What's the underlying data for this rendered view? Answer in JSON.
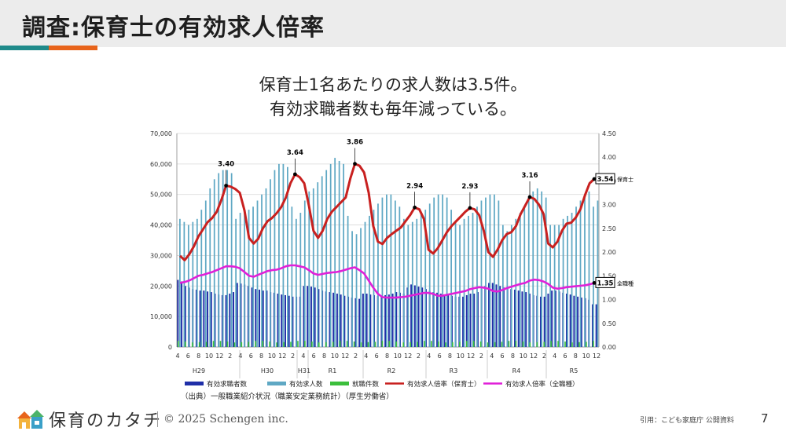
{
  "slide": {
    "title": "調査:保育士の有効求人倍率",
    "subtitle_line1": "保育士1名あたりの求人数は3.5件。",
    "subtitle_line2": "有効求職者数も毎年減っている。",
    "source": "（出典）一般職業紹介状況（職業安定業務統計）（厚生労働省）",
    "brand": "保育のカタチ",
    "copyright": "© 2025 Schengen inc.",
    "citation": "引用：こども家庭庁 公開資料",
    "page": "7",
    "colors": {
      "teal": "#1f8a8a",
      "orange": "#e8641b",
      "header_bg": "#ececec"
    }
  },
  "chart_data": {
    "type": "bar",
    "x_month_labels": [
      "4",
      "6",
      "8",
      "10",
      "12",
      "2",
      "4",
      "6",
      "8",
      "10",
      "12",
      "2",
      "4",
      "6",
      "8",
      "10",
      "12",
      "2",
      "4",
      "6",
      "8",
      "10",
      "12",
      "2",
      "4",
      "6",
      "8",
      "10",
      "12",
      "2",
      "4",
      "6",
      "8",
      "10",
      "12",
      "2",
      "4",
      "6",
      "8",
      "10",
      "12"
    ],
    "x_year_labels": [
      "H29",
      "H30",
      "H31",
      "R1",
      "R2",
      "R3",
      "R4",
      "R5"
    ],
    "ylim_left": [
      0,
      70000
    ],
    "left_ticks": [
      "0",
      "10,000",
      "20,000",
      "30,000",
      "40,000",
      "50,000",
      "60,000",
      "70,000"
    ],
    "ylim_right": [
      0,
      4.5
    ],
    "right_ticks": [
      "0.00",
      "0.50",
      "1.00",
      "1.50",
      "2.00",
      "2.50",
      "3.00",
      "3.50",
      "4.00",
      "4.50"
    ],
    "series": [
      {
        "name": "有効求職者数",
        "type": "bar",
        "color": "#1f2fa8",
        "values": [
          22000,
          21500,
          20000,
          19500,
          19000,
          18800,
          18500,
          18500,
          18200,
          18000,
          17500,
          17200,
          17000,
          17000,
          17500,
          18000,
          21000,
          20800,
          20500,
          20000,
          19500,
          19000,
          18800,
          18500,
          18500,
          18000,
          17800,
          17500,
          17200,
          17000,
          16800,
          16500,
          16500,
          16500,
          20000,
          20000,
          19800,
          19500,
          19000,
          18500,
          18200,
          18000,
          17800,
          17500,
          17200,
          16800,
          16500,
          16200,
          16000,
          15800,
          17500,
          17500,
          17200,
          17000,
          16800,
          16800,
          17000,
          17200,
          17500,
          18000,
          17800,
          17500,
          19500,
          20500,
          20200,
          19800,
          19500,
          19000,
          18500,
          18000,
          17800,
          17500,
          17200,
          17000,
          16800,
          16500,
          16500,
          16500,
          17000,
          17500,
          17500,
          18000,
          19000,
          20000,
          21000,
          21000,
          20500,
          20000,
          19500,
          19200,
          19000,
          18800,
          18500,
          18200,
          18000,
          17500,
          17000,
          16800,
          16500,
          16500,
          17500,
          18500,
          18500,
          18200,
          17800,
          17500,
          17200,
          16800,
          16500,
          16200,
          16000,
          15500,
          14000,
          14000
        ]
      },
      {
        "name": "有効求人数",
        "type": "bar",
        "color": "#5fa8c4",
        "values": [
          42000,
          41000,
          40000,
          41000,
          42000,
          45000,
          48000,
          52000,
          55000,
          57000,
          58000,
          58000,
          57000,
          42000,
          44000,
          45000,
          45000,
          46000,
          48000,
          50000,
          52000,
          55000,
          58000,
          60000,
          60000,
          59000,
          46000,
          42000,
          44000,
          48000,
          51000,
          52000,
          54000,
          56000,
          58000,
          60000,
          62000,
          61000,
          60000,
          43000,
          38000,
          37000,
          39000,
          41000,
          43000,
          45000,
          47000,
          49000,
          50000,
          50000,
          48000,
          46000,
          42000,
          40000,
          41000,
          42000,
          44000,
          45000,
          47000,
          49000,
          50000,
          50000,
          49000,
          45000,
          41000,
          40000,
          42000,
          43000,
          44000,
          46000,
          48000,
          49000,
          50000,
          50000,
          48000,
          40000,
          38000,
          40000,
          42000,
          44000,
          46000,
          49000,
          51000,
          52000,
          51000,
          49000,
          40000,
          40000,
          40000,
          42000,
          43000,
          44000,
          46000,
          48000,
          50000,
          51000,
          46000,
          48000
        ]
      },
      {
        "name": "就職件数",
        "type": "bar",
        "color": "#3cbf3c",
        "values": [
          2000,
          1800,
          1500,
          1600,
          1700,
          2000
        ]
      },
      {
        "name": "有効求人倍率（保育士）",
        "type": "line",
        "axis": "right",
        "color": "#c8201f",
        "values": [
          1.92,
          1.83,
          1.95,
          2.12,
          2.33,
          2.48,
          2.63,
          2.72,
          2.85,
          3.1,
          3.4,
          3.38,
          3.33,
          3.25,
          2.88,
          2.3,
          2.18,
          2.28,
          2.5,
          2.65,
          2.72,
          2.82,
          2.95,
          3.15,
          3.45,
          3.64,
          3.58,
          3.45,
          2.98,
          2.45,
          2.3,
          2.45,
          2.7,
          2.85,
          2.95,
          3.05,
          3.15,
          3.55,
          3.86,
          3.82,
          3.68,
          3.25,
          2.55,
          2.22,
          2.17,
          2.3,
          2.38,
          2.45,
          2.52,
          2.65,
          2.78,
          2.94,
          2.9,
          2.7,
          2.05,
          1.97,
          2.08,
          2.25,
          2.42,
          2.55,
          2.65,
          2.75,
          2.85,
          2.93,
          2.9,
          2.78,
          2.45,
          2.0,
          1.9,
          2.05,
          2.25,
          2.38,
          2.42,
          2.55,
          2.8,
          2.98,
          3.16,
          3.12,
          3.0,
          2.8,
          2.18,
          2.1,
          2.22,
          2.45,
          2.6,
          2.62,
          2.73,
          2.9,
          3.2,
          3.45,
          3.54
        ]
      },
      {
        "name": "有効求人倍率（全職種）",
        "type": "line",
        "axis": "right",
        "color": "#e020d8",
        "values": [
          1.35,
          1.37,
          1.4,
          1.45,
          1.5,
          1.52,
          1.55,
          1.58,
          1.62,
          1.66,
          1.7,
          1.7,
          1.69,
          1.66,
          1.58,
          1.5,
          1.48,
          1.52,
          1.56,
          1.6,
          1.62,
          1.63,
          1.66,
          1.7,
          1.72,
          1.72,
          1.7,
          1.68,
          1.62,
          1.55,
          1.52,
          1.54,
          1.56,
          1.57,
          1.58,
          1.6,
          1.63,
          1.66,
          1.68,
          1.62,
          1.55,
          1.4,
          1.25,
          1.12,
          1.05,
          1.04,
          1.04,
          1.04,
          1.05,
          1.06,
          1.08,
          1.1,
          1.12,
          1.14,
          1.14,
          1.12,
          1.08,
          1.08,
          1.1,
          1.12,
          1.14,
          1.16,
          1.18,
          1.22,
          1.24,
          1.26,
          1.25,
          1.23,
          1.18,
          1.17,
          1.2,
          1.24,
          1.27,
          1.3,
          1.33,
          1.35,
          1.4,
          1.42,
          1.41,
          1.38,
          1.33,
          1.25,
          1.23,
          1.24,
          1.26,
          1.27,
          1.28,
          1.29,
          1.3,
          1.32,
          1.35
        ]
      }
    ],
    "annotations": [
      {
        "label": "3.40",
        "series": "有効求人倍率（保育士）",
        "index": 10
      },
      {
        "label": "3.64",
        "series": "有効求人倍率（保育士）",
        "index": 25
      },
      {
        "label": "3.86",
        "series": "有効求人倍率（保育士）",
        "index": 38
      },
      {
        "label": "2.94",
        "series": "有効求人倍率（保育士）",
        "index": 51
      },
      {
        "label": "2.93",
        "series": "有効求人倍率（保育士）",
        "index": 63
      },
      {
        "label": "3.16",
        "series": "有効求人倍率（保育士）",
        "index": 76
      },
      {
        "label": "3.54",
        "series": "有効求人倍率（保育士）",
        "index": 90,
        "boxed": true,
        "tag": "保育士"
      },
      {
        "label": "1.35",
        "series": "有効求人倍率（全職種）",
        "index": 90,
        "boxed": true,
        "tag": "全職種"
      }
    ],
    "legend": [
      "有効求職者数",
      "有効求人数",
      "就職件数",
      "有効求人倍率（保育士）",
      "有効求人倍率（全職種）"
    ],
    "legend_position": "bottom"
  }
}
